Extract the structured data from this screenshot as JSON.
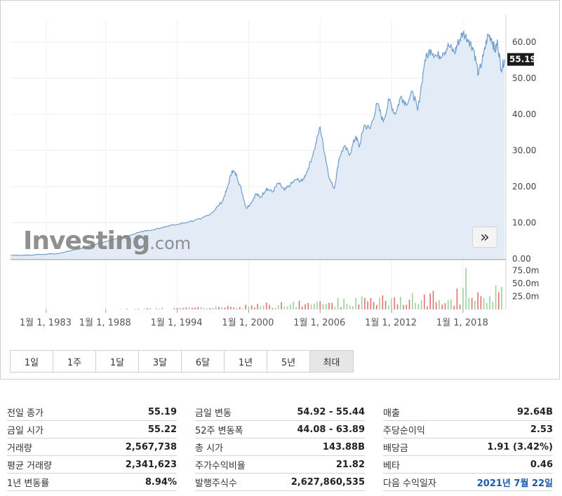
{
  "chart_data": {
    "type": "area",
    "y_ticks": [
      "60.00",
      "50.00",
      "40.00",
      "30.00",
      "20.00",
      "10.00",
      "0.00"
    ],
    "ylim": [
      0,
      66
    ],
    "x_ticks": [
      "1월 1, 1983",
      "1월 1, 1988",
      "1월 1, 1994",
      "1월 1, 2000",
      "1월 1, 2006",
      "1월 1, 2012",
      "1월 1, 2018"
    ],
    "xlim": [
      1980.0,
      2021.6
    ],
    "current_price_label": "55.19",
    "current_price": 55.19,
    "series": [
      {
        "x": [
          1980.0,
          1982.0,
          1984.0,
          1986.0,
          1988.0,
          1990.0,
          1991.0,
          1992.0,
          1993.0,
          1994.0,
          1995.0,
          1996.0,
          1997.0,
          1997.8,
          1998.2,
          1998.6,
          1999.0,
          1999.4,
          1999.8,
          2000.2,
          2000.6,
          2001.0,
          2001.5,
          2002.0,
          2002.5,
          2003.0,
          2003.5,
          2004.0,
          2004.5,
          2005.0,
          2005.5,
          2006.0,
          2006.4,
          2006.8,
          2007.2,
          2007.6,
          2008.0,
          2008.5,
          2009.0,
          2009.3,
          2009.7,
          2010.2,
          2010.8,
          2011.3,
          2011.8,
          2012.3,
          2012.8,
          2013.2,
          2013.8,
          2014.2,
          2014.8,
          2015.3,
          2015.8,
          2016.3,
          2016.8,
          2017.3,
          2017.6,
          2018.0,
          2018.5,
          2018.9,
          2019.3,
          2019.7,
          2020.1,
          2020.4,
          2020.7,
          2020.9,
          2021.2,
          2021.5
        ],
        "values": [
          1.0,
          1.1,
          1.5,
          3.0,
          4.8,
          6.5,
          7.6,
          8.0,
          9.0,
          9.5,
          10.3,
          11.0,
          13.0,
          16.0,
          19.5,
          24.5,
          23.0,
          19.0,
          14.0,
          15.5,
          18.0,
          17.0,
          19.5,
          18.5,
          21.0,
          19.0,
          20.5,
          22.0,
          21.5,
          25.0,
          30.0,
          36.5,
          29.0,
          22.0,
          19.5,
          28.0,
          31.0,
          29.0,
          34.0,
          31.0,
          37.0,
          36.0,
          43.0,
          38.0,
          44.0,
          40.0,
          45.0,
          43.0,
          46.0,
          41.0,
          55.0,
          58.0,
          56.0,
          57.0,
          59.0,
          57.0,
          60.0,
          62.5,
          60.5,
          58.0,
          51.0,
          56.0,
          62.0,
          61.0,
          57.5,
          60.0,
          52.5,
          55.19
        ]
      }
    ],
    "volume": {
      "y_ticks": [
        "75.0m",
        "50.0m",
        "25.0m"
      ],
      "ylim": [
        0,
        92
      ],
      "unit": "m"
    }
  },
  "logo": {
    "main": "Investing",
    "suffix": ".com"
  },
  "nav": {
    "next_label": "»"
  },
  "range_tabs": [
    "1일",
    "1주",
    "1달",
    "3달",
    "6달",
    "1년",
    "5년",
    "최대"
  ],
  "range_tab_active": "최대",
  "stats": {
    "col1": [
      {
        "label": "전일 종가",
        "value": "55.19"
      },
      {
        "label": "금일 시가",
        "value": "55.22"
      },
      {
        "label": "거래량",
        "value": "2,567,738"
      },
      {
        "label": "평균 거래량",
        "value": "2,341,623"
      },
      {
        "label": "1년 변동률",
        "value": "8.94%"
      }
    ],
    "col2": [
      {
        "label": "금일 변동",
        "value": "54.92 - 55.44"
      },
      {
        "label": "52주 변동폭",
        "value": "44.08 - 63.89"
      },
      {
        "label": "총 시가",
        "value": "143.88B"
      },
      {
        "label": "주가수익비율",
        "value": "21.82"
      },
      {
        "label": "발행주식수",
        "value": "2,627,860,535"
      }
    ],
    "col3": [
      {
        "label": "매출",
        "value": "92.64B"
      },
      {
        "label": "주당순이익",
        "value": "2.53"
      },
      {
        "label": "배당금",
        "value": "1.91 (3.42%)"
      },
      {
        "label": "베타",
        "value": "0.46"
      },
      {
        "label": "다음 수익일자",
        "value": "2021년 7월 22일"
      }
    ]
  },
  "colors": {
    "line": "#6f9ccc",
    "area": "#e3ecf6",
    "vol_up": "#9ad29a",
    "vol_down": "#e07070",
    "price_tag": "#1b1b1b",
    "link": "#1a5aa8"
  }
}
